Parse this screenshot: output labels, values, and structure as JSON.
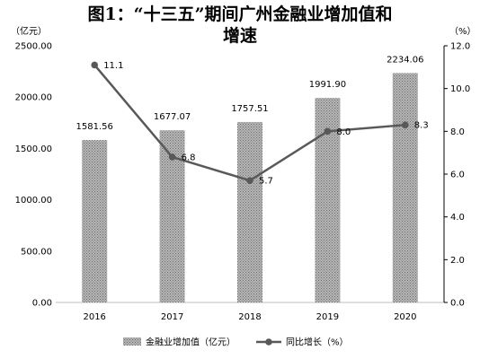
{
  "title": {
    "line1": "图1：“十三五”期间广州金融业增加值和",
    "line2": "增速"
  },
  "chart_data": {
    "type": "bar+line",
    "categories": [
      "2016",
      "2017",
      "2018",
      "2019",
      "2020"
    ],
    "series": [
      {
        "name": "金融业增加值（亿元）",
        "type": "bar",
        "axis": "left",
        "values": [
          1581.56,
          1677.07,
          1757.51,
          1991.9,
          2234.06
        ],
        "labels": [
          "1581.56",
          "1677.07",
          "1757.51",
          "1991.90",
          "2234.06"
        ],
        "color": "#a6a6a6"
      },
      {
        "name": "同比增长（%）",
        "type": "line",
        "axis": "right",
        "values": [
          11.1,
          6.8,
          5.7,
          8.0,
          8.3
        ],
        "labels": [
          "11.1",
          "6.8",
          "5.7",
          "8.0",
          "8.3"
        ],
        "color": "#595959"
      }
    ],
    "left_axis": {
      "unit": "（亿元）",
      "ylim": [
        0,
        2500
      ],
      "ticks": [
        "0.00",
        "500.00",
        "1000.00",
        "1500.00",
        "2000.00",
        "2500.00"
      ]
    },
    "right_axis": {
      "unit": "（%）",
      "ylim": [
        0,
        12
      ],
      "ticks": [
        "0.0",
        "2.0",
        "4.0",
        "6.0",
        "8.0",
        "10.0",
        "12.0"
      ]
    },
    "grid": false,
    "legend": "bottom"
  }
}
